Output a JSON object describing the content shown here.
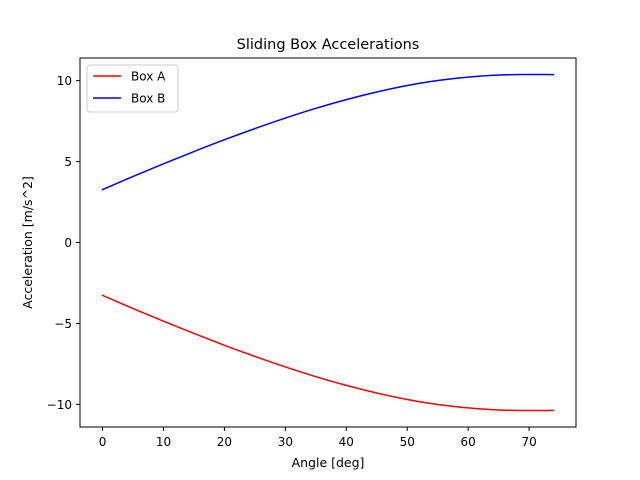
{
  "chart_data": {
    "type": "line",
    "title": "Sliding Box Accelerations",
    "xlabel": "Angle [deg]",
    "ylabel": "Acceleration [m/s^2]",
    "xlim": [
      -3.7,
      77.7
    ],
    "ylim": [
      -11.4,
      11.4
    ],
    "xticks": [
      0,
      10,
      20,
      30,
      40,
      50,
      60,
      70
    ],
    "yticks": [
      -10,
      -5,
      0,
      5,
      10
    ],
    "ytick_labels": [
      "−10",
      "−5",
      "0",
      "5",
      "10"
    ],
    "legend_position": "top-left",
    "grid": false,
    "series": [
      {
        "name": "Box A",
        "color": "#ff0000",
        "x": [
          0,
          5,
          10,
          15,
          20,
          25,
          30,
          35,
          40,
          45,
          50,
          55,
          60,
          65,
          70,
          72,
          74
        ],
        "y": [
          -3.27,
          -4.08,
          -4.86,
          -5.62,
          -6.35,
          -7.04,
          -7.69,
          -8.29,
          -8.83,
          -9.3,
          -9.7,
          -10.01,
          -10.22,
          -10.35,
          -10.38,
          -10.38,
          -10.37
        ]
      },
      {
        "name": "Box B",
        "color": "#0000ff",
        "x": [
          0,
          5,
          10,
          15,
          20,
          25,
          30,
          35,
          40,
          45,
          50,
          55,
          60,
          65,
          70,
          72,
          74
        ],
        "y": [
          3.27,
          4.08,
          4.86,
          5.62,
          6.35,
          7.04,
          7.69,
          8.29,
          8.83,
          9.3,
          9.7,
          10.01,
          10.22,
          10.35,
          10.38,
          10.38,
          10.37
        ]
      }
    ]
  }
}
